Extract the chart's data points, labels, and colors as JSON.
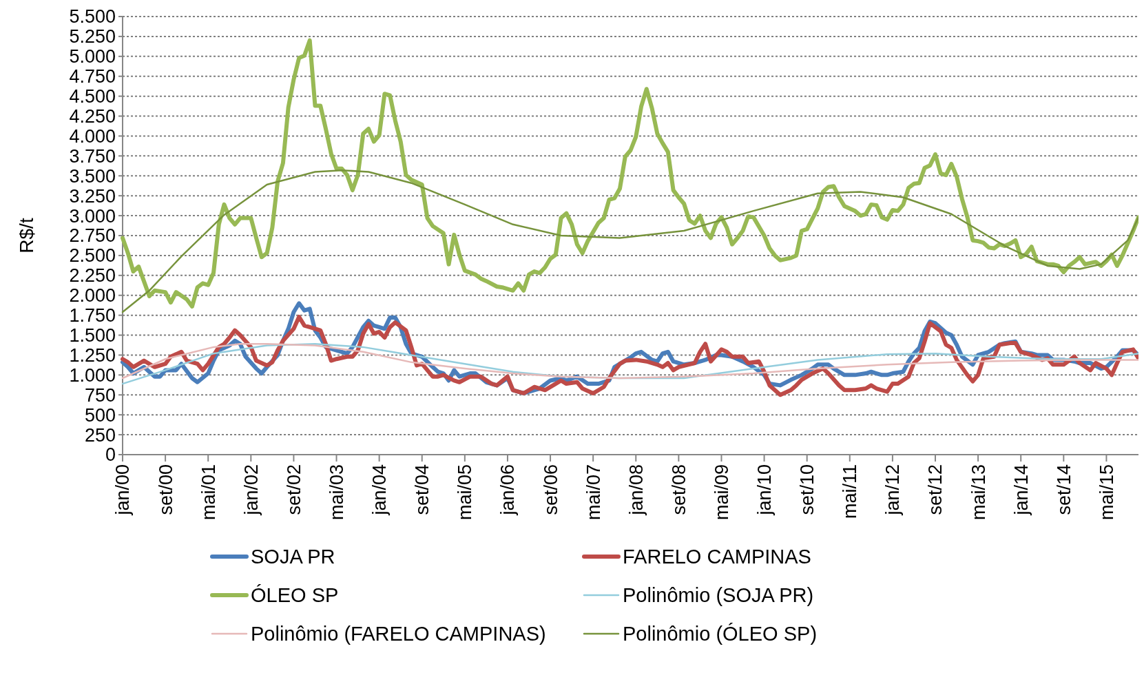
{
  "chart_data": {
    "type": "line",
    "ylabel": "R$/t",
    "legend": "bottom",
    "grid": "y",
    "marker": "none",
    "line_style": "solid",
    "xlim": [
      "2000-01",
      "2015-11"
    ],
    "xticks": [
      {
        "value": "2000-01",
        "label": "jan/00"
      },
      {
        "value": "2000-09",
        "label": "set/00"
      },
      {
        "value": "2001-05",
        "label": "mai/01"
      },
      {
        "value": "2002-01",
        "label": "jan/02"
      },
      {
        "value": "2002-09",
        "label": "set/02"
      },
      {
        "value": "2003-05",
        "label": "mai/03"
      },
      {
        "value": "2004-01",
        "label": "jan/04"
      },
      {
        "value": "2004-09",
        "label": "set/04"
      },
      {
        "value": "2005-05",
        "label": "mai/05"
      },
      {
        "value": "2006-01",
        "label": "jan/06"
      },
      {
        "value": "2006-09",
        "label": "set/06"
      },
      {
        "value": "2007-05",
        "label": "mai/07"
      },
      {
        "value": "2008-01",
        "label": "jan/08"
      },
      {
        "value": "2008-09",
        "label": "set/08"
      },
      {
        "value": "2009-05",
        "label": "mai/09"
      },
      {
        "value": "2010-01",
        "label": "jan/10"
      },
      {
        "value": "2010-09",
        "label": "set/10"
      },
      {
        "value": "2011-05",
        "label": "mai/11"
      },
      {
        "value": "2012-01",
        "label": "jan/12"
      },
      {
        "value": "2012-09",
        "label": "set/12"
      },
      {
        "value": "2013-05",
        "label": "mai/13"
      },
      {
        "value": "2014-01",
        "label": "jan/14"
      },
      {
        "value": "2014-09",
        "label": "set/14"
      },
      {
        "value": "2015-05",
        "label": "mai/15"
      }
    ],
    "ylim": [
      0,
      5500
    ],
    "yticks": [
      0,
      250,
      500,
      750,
      {
        "value": 1000,
        "label": "1.000"
      },
      {
        "value": 1250,
        "label": "1.250"
      },
      {
        "value": 1500,
        "label": "1.500"
      },
      {
        "value": 1750,
        "label": "1.750"
      },
      {
        "value": 2000,
        "label": "2.000"
      },
      {
        "value": 2250,
        "label": "2.250"
      },
      {
        "value": 2500,
        "label": "2.500"
      },
      {
        "value": 2750,
        "label": "2.750"
      },
      {
        "value": 3000,
        "label": "3.000"
      },
      {
        "value": 3250,
        "label": "3.250"
      },
      {
        "value": 3500,
        "label": "3.500"
      },
      {
        "value": 3750,
        "label": "3.750"
      },
      {
        "value": 4000,
        "label": "4.000"
      },
      {
        "value": 4250,
        "label": "4.250"
      },
      {
        "value": 4500,
        "label": "4.500"
      },
      {
        "value": 4750,
        "label": "4.750"
      },
      {
        "value": 5000,
        "label": "5.000"
      },
      {
        "value": 5250,
        "label": "5.250"
      },
      {
        "value": 5500,
        "label": "5.500"
      }
    ],
    "series": [
      {
        "name": "SOJA PR",
        "color": "#4a7ebb",
        "x": [
          "2000-01",
          "2000-02",
          "2000-03",
          "2000-05",
          "2000-07",
          "2000-08",
          "2000-09",
          "2000-11",
          "2000-12",
          "2001-02",
          "2001-03",
          "2001-05",
          "2001-06",
          "2001-07",
          "2001-09",
          "2001-10",
          "2001-11",
          "2001-12",
          "2002-02",
          "2002-03",
          "2002-04",
          "2002-06",
          "2002-07",
          "2002-08",
          "2002-09",
          "2002-10",
          "2002-11",
          "2002-12",
          "2003-01",
          "2003-02",
          "2003-03",
          "2003-05",
          "2003-06",
          "2003-07",
          "2003-08",
          "2003-10",
          "2003-11",
          "2003-12",
          "2004-01",
          "2004-02",
          "2004-03",
          "2004-04",
          "2004-05",
          "2004-06",
          "2004-07",
          "2004-09",
          "2004-11",
          "2004-12",
          "2005-01",
          "2005-02",
          "2005-03",
          "2005-04",
          "2005-06",
          "2005-07",
          "2005-09",
          "2005-11",
          "2006-01",
          "2006-02",
          "2006-04",
          "2006-06",
          "2006-07",
          "2006-09",
          "2006-11",
          "2006-12",
          "2007-02",
          "2007-04",
          "2007-06",
          "2007-08",
          "2007-09",
          "2007-11",
          "2007-12",
          "2008-01",
          "2008-02",
          "2008-04",
          "2008-05",
          "2008-06",
          "2008-07",
          "2008-08",
          "2008-10",
          "2008-12",
          "2009-02",
          "2009-04",
          "2009-05",
          "2009-07",
          "2009-09",
          "2009-11",
          "2010-01",
          "2010-02",
          "2010-04",
          "2010-06",
          "2010-08",
          "2010-10",
          "2010-11",
          "2011-01",
          "2011-02",
          "2011-04",
          "2011-06",
          "2011-08",
          "2011-09",
          "2011-11",
          "2011-12",
          "2012-01",
          "2012-03",
          "2012-04",
          "2012-05",
          "2012-06",
          "2012-07",
          "2012-08",
          "2012-09",
          "2012-11",
          "2012-12",
          "2013-01",
          "2013-02",
          "2013-04",
          "2013-05",
          "2013-07",
          "2013-09",
          "2013-10",
          "2013-12",
          "2014-01",
          "2014-03",
          "2014-04",
          "2014-06",
          "2014-07",
          "2014-09",
          "2014-11",
          "2014-12",
          "2015-02",
          "2015-04",
          "2015-05",
          "2015-07",
          "2015-08",
          "2015-10",
          "2015-11"
        ],
        "values": [
          1160,
          1100,
          1020,
          1100,
          980,
          980,
          1060,
          1060,
          1140,
          960,
          910,
          1020,
          1180,
          1310,
          1370,
          1430,
          1390,
          1230,
          1080,
          1020,
          1100,
          1250,
          1430,
          1580,
          1790,
          1900,
          1810,
          1830,
          1560,
          1470,
          1350,
          1310,
          1290,
          1270,
          1350,
          1600,
          1680,
          1620,
          1600,
          1580,
          1720,
          1720,
          1600,
          1390,
          1270,
          1230,
          1100,
          1040,
          1020,
          930,
          1060,
          980,
          1020,
          1020,
          910,
          870,
          960,
          810,
          770,
          810,
          830,
          930,
          960,
          930,
          980,
          890,
          890,
          930,
          1100,
          1180,
          1220,
          1270,
          1290,
          1190,
          1170,
          1270,
          1290,
          1170,
          1130,
          1150,
          1190,
          1250,
          1250,
          1230,
          1170,
          1100,
          1000,
          890,
          870,
          940,
          1000,
          1080,
          1130,
          1130,
          1080,
          1000,
          1000,
          1020,
          1040,
          1000,
          1000,
          1020,
          1040,
          1170,
          1270,
          1340,
          1550,
          1670,
          1650,
          1530,
          1500,
          1380,
          1230,
          1130,
          1250,
          1290,
          1380,
          1400,
          1420,
          1290,
          1270,
          1250,
          1250,
          1190,
          1190,
          1170,
          1150,
          1150,
          1080,
          1100,
          1230,
          1310,
          1310,
          1250
        ]
      },
      {
        "name": "FARELO CAMPINAS",
        "color": "#be4b48",
        "x": [
          "2000-01",
          "2000-02",
          "2000-03",
          "2000-05",
          "2000-07",
          "2000-09",
          "2000-10",
          "2000-12",
          "2001-01",
          "2001-03",
          "2001-04",
          "2001-05",
          "2001-07",
          "2001-08",
          "2001-09",
          "2001-10",
          "2001-11",
          "2002-01",
          "2002-02",
          "2002-04",
          "2002-05",
          "2002-06",
          "2002-07",
          "2002-09",
          "2002-10",
          "2002-11",
          "2002-12",
          "2003-02",
          "2003-03",
          "2003-04",
          "2003-05",
          "2003-07",
          "2003-08",
          "2003-09",
          "2003-10",
          "2003-11",
          "2003-12",
          "2004-01",
          "2004-02",
          "2004-03",
          "2004-04",
          "2004-06",
          "2004-07",
          "2004-08",
          "2004-09",
          "2004-11",
          "2004-12",
          "2005-01",
          "2005-03",
          "2005-04",
          "2005-06",
          "2005-08",
          "2005-10",
          "2005-11",
          "2006-01",
          "2006-02",
          "2006-04",
          "2006-06",
          "2006-08",
          "2006-10",
          "2006-11",
          "2006-12",
          "2007-02",
          "2007-03",
          "2007-05",
          "2007-07",
          "2007-08",
          "2007-10",
          "2007-11",
          "2008-01",
          "2008-03",
          "2008-05",
          "2008-06",
          "2008-07",
          "2008-08",
          "2008-09",
          "2008-12",
          "2009-01",
          "2009-02",
          "2009-03",
          "2009-05",
          "2009-06",
          "2009-07",
          "2009-09",
          "2009-10",
          "2009-12",
          "2010-01",
          "2010-02",
          "2010-04",
          "2010-06",
          "2010-07",
          "2010-08",
          "2010-10",
          "2010-12",
          "2011-01",
          "2011-03",
          "2011-04",
          "2011-06",
          "2011-08",
          "2011-09",
          "2011-10",
          "2011-12",
          "2012-01",
          "2012-02",
          "2012-04",
          "2012-05",
          "2012-06",
          "2012-07",
          "2012-08",
          "2012-10",
          "2012-11",
          "2012-12",
          "2013-01",
          "2013-03",
          "2013-04",
          "2013-05",
          "2013-06",
          "2013-08",
          "2013-09",
          "2013-11",
          "2013-12",
          "2014-01",
          "2014-03",
          "2014-05",
          "2014-06",
          "2014-07",
          "2014-09",
          "2014-11",
          "2014-12",
          "2015-02",
          "2015-03",
          "2015-05",
          "2015-06",
          "2015-07",
          "2015-08",
          "2015-10",
          "2015-11"
        ],
        "values": [
          1200,
          1160,
          1100,
          1180,
          1100,
          1140,
          1230,
          1290,
          1180,
          1140,
          1060,
          1140,
          1350,
          1390,
          1470,
          1560,
          1500,
          1350,
          1180,
          1120,
          1160,
          1310,
          1430,
          1580,
          1730,
          1620,
          1600,
          1560,
          1390,
          1180,
          1200,
          1230,
          1230,
          1310,
          1520,
          1640,
          1520,
          1540,
          1470,
          1600,
          1660,
          1560,
          1350,
          1120,
          1140,
          980,
          980,
          1000,
          930,
          910,
          980,
          980,
          890,
          870,
          980,
          810,
          770,
          850,
          810,
          890,
          930,
          890,
          910,
          830,
          770,
          850,
          960,
          1140,
          1180,
          1190,
          1170,
          1130,
          1100,
          1150,
          1060,
          1100,
          1150,
          1290,
          1390,
          1170,
          1320,
          1290,
          1230,
          1230,
          1150,
          1170,
          1040,
          870,
          750,
          810,
          870,
          940,
          1020,
          1080,
          1020,
          870,
          810,
          810,
          830,
          870,
          830,
          790,
          890,
          890,
          980,
          1150,
          1210,
          1420,
          1650,
          1550,
          1380,
          1340,
          1190,
          1000,
          920,
          1000,
          1210,
          1230,
          1380,
          1400,
          1400,
          1290,
          1250,
          1190,
          1210,
          1130,
          1130,
          1230,
          1150,
          1060,
          1150,
          1080,
          1000,
          1150,
          1290,
          1320,
          1210
        ]
      },
      {
        "name": "ÓLEO SP",
        "color": "#98b954",
        "x": [
          "2000-01",
          "2000-02",
          "2000-03",
          "2000-04",
          "2000-06",
          "2000-07",
          "2000-09",
          "2000-10",
          "2000-11",
          "2001-01",
          "2001-02",
          "2001-03",
          "2001-04",
          "2001-05",
          "2001-06",
          "2001-07",
          "2001-08",
          "2001-09",
          "2001-10",
          "2001-11",
          "2002-01",
          "2002-02",
          "2002-03",
          "2002-04",
          "2002-05",
          "2002-06",
          "2002-07",
          "2002-08",
          "2002-09",
          "2002-10",
          "2002-11",
          "2002-12",
          "2003-01",
          "2003-02",
          "2003-03",
          "2003-04",
          "2003-05",
          "2003-06",
          "2003-07",
          "2003-08",
          "2003-09",
          "2003-10",
          "2003-11",
          "2003-12",
          "2004-01",
          "2004-02",
          "2004-03",
          "2004-04",
          "2004-05",
          "2004-06",
          "2004-07",
          "2004-09",
          "2004-10",
          "2004-11",
          "2005-01",
          "2005-02",
          "2005-03",
          "2005-04",
          "2005-05",
          "2005-07",
          "2005-08",
          "2005-09",
          "2005-11",
          "2005-12",
          "2006-02",
          "2006-03",
          "2006-04",
          "2006-05",
          "2006-06",
          "2006-07",
          "2006-08",
          "2006-09",
          "2006-10",
          "2006-11",
          "2006-12",
          "2007-01",
          "2007-02",
          "2007-03",
          "2007-04",
          "2007-06",
          "2007-07",
          "2007-08",
          "2007-09",
          "2007-10",
          "2007-11",
          "2007-12",
          "2008-01",
          "2008-02",
          "2008-03",
          "2008-04",
          "2008-05",
          "2008-06",
          "2008-07",
          "2008-08",
          "2008-09",
          "2008-10",
          "2008-11",
          "2008-12",
          "2009-01",
          "2009-02",
          "2009-03",
          "2009-04",
          "2009-05",
          "2009-06",
          "2009-07",
          "2009-08",
          "2009-09",
          "2009-10",
          "2009-11",
          "2010-01",
          "2010-02",
          "2010-03",
          "2010-04",
          "2010-06",
          "2010-07",
          "2010-08",
          "2010-09",
          "2010-10",
          "2010-11",
          "2010-12",
          "2011-01",
          "2011-02",
          "2011-03",
          "2011-04",
          "2011-06",
          "2011-07",
          "2011-08",
          "2011-09",
          "2011-10",
          "2011-11",
          "2011-12",
          "2012-01",
          "2012-02",
          "2012-03",
          "2012-04",
          "2012-05",
          "2012-06",
          "2012-07",
          "2012-08",
          "2012-09",
          "2012-10",
          "2012-11",
          "2012-12",
          "2013-01",
          "2013-02",
          "2013-03",
          "2013-04",
          "2013-05",
          "2013-06",
          "2013-07",
          "2013-08",
          "2013-09",
          "2013-10",
          "2013-11",
          "2013-12",
          "2014-01",
          "2014-02",
          "2014-03",
          "2014-04",
          "2014-06",
          "2014-07",
          "2014-08",
          "2014-09",
          "2014-10",
          "2014-11",
          "2014-12",
          "2015-01",
          "2015-03",
          "2015-04",
          "2015-05",
          "2015-06",
          "2015-07",
          "2015-08",
          "2015-10",
          "2015-11"
        ],
        "values": [
          2720,
          2530,
          2300,
          2360,
          1990,
          2060,
          2040,
          1910,
          2040,
          1950,
          1860,
          2100,
          2150,
          2130,
          2280,
          2890,
          3140,
          2970,
          2890,
          2970,
          2970,
          2720,
          2480,
          2530,
          2850,
          3430,
          3660,
          4360,
          4710,
          4980,
          5010,
          5200,
          4380,
          4380,
          4090,
          3780,
          3590,
          3590,
          3510,
          3320,
          3510,
          4030,
          4090,
          3930,
          4010,
          4530,
          4510,
          4190,
          3930,
          3510,
          3450,
          3390,
          2970,
          2870,
          2780,
          2390,
          2760,
          2510,
          2310,
          2260,
          2210,
          2180,
          2110,
          2100,
          2060,
          2150,
          2060,
          2260,
          2300,
          2280,
          2350,
          2460,
          2510,
          2970,
          3030,
          2890,
          2640,
          2530,
          2680,
          2910,
          2970,
          3200,
          3220,
          3340,
          3740,
          3820,
          3990,
          4370,
          4590,
          4350,
          4030,
          3910,
          3800,
          3320,
          3230,
          3150,
          2940,
          2900,
          3000,
          2810,
          2720,
          2900,
          2980,
          2850,
          2640,
          2720,
          2810,
          2990,
          2980,
          2750,
          2590,
          2500,
          2440,
          2470,
          2500,
          2810,
          2830,
          2960,
          3090,
          3300,
          3360,
          3370,
          3230,
          3120,
          3060,
          3000,
          3020,
          3140,
          3130,
          2980,
          2950,
          3070,
          3060,
          3140,
          3350,
          3400,
          3410,
          3600,
          3630,
          3770,
          3530,
          3510,
          3650,
          3490,
          3210,
          2980,
          2690,
          2680,
          2660,
          2600,
          2590,
          2640,
          2620,
          2650,
          2690,
          2480,
          2520,
          2610,
          2430,
          2390,
          2390,
          2370,
          2290,
          2370,
          2420,
          2480,
          2390,
          2420,
          2370,
          2430,
          2510,
          2370,
          2500,
          2810,
          2980
        ]
      },
      {
        "name": "Polinômio (SOJA PR)",
        "color": "#93cddd",
        "x": [
          "2000-01",
          "2000-09",
          "2001-06",
          "2002-04",
          "2003-01",
          "2003-10",
          "2004-07",
          "2005-05",
          "2006-02",
          "2006-11",
          "2007-10",
          "2008-10",
          "2009-11",
          "2010-11",
          "2011-12",
          "2012-09",
          "2013-07",
          "2014-07",
          "2015-04",
          "2015-11"
        ],
        "values": [
          890,
          1060,
          1270,
          1370,
          1390,
          1350,
          1250,
          1140,
          1040,
          980,
          960,
          960,
          1080,
          1190,
          1260,
          1270,
          1230,
          1200,
          1200,
          1270
        ]
      },
      {
        "name": "Polinômio (FARELO CAMPINAS)",
        "color": "#e6b9b8",
        "x": [
          "2000-01",
          "2000-09",
          "2001-06",
          "2001-11",
          "2002-04",
          "2003-01",
          "2003-10",
          "2004-07",
          "2005-05",
          "2006-02",
          "2006-11",
          "2007-10",
          "2008-10",
          "2009-11",
          "2010-11",
          "2011-12",
          "2012-12",
          "2014-01",
          "2015-01",
          "2015-11"
        ],
        "values": [
          960,
          1200,
          1350,
          1390,
          1390,
          1370,
          1290,
          1160,
          1080,
          1020,
          980,
          960,
          980,
          1020,
          1080,
          1130,
          1160,
          1180,
          1190,
          1190
        ]
      },
      {
        "name": "Polinômio (ÓLEO SP)",
        "color": "#77933c",
        "x": [
          "2000-01",
          "2000-06",
          "2000-12",
          "2001-08",
          "2002-04",
          "2003-01",
          "2003-06",
          "2003-11",
          "2004-07",
          "2005-05",
          "2006-02",
          "2006-11",
          "2007-10",
          "2008-10",
          "2009-11",
          "2010-11",
          "2011-07",
          "2012-03",
          "2012-12",
          "2013-10",
          "2014-06",
          "2014-12",
          "2015-04",
          "2015-09",
          "2015-11"
        ],
        "values": [
          1790,
          2060,
          2490,
          3010,
          3390,
          3550,
          3570,
          3550,
          3410,
          3140,
          2890,
          2750,
          2720,
          2810,
          3060,
          3280,
          3300,
          3230,
          3020,
          2620,
          2370,
          2330,
          2390,
          2690,
          2980
        ]
      }
    ]
  }
}
